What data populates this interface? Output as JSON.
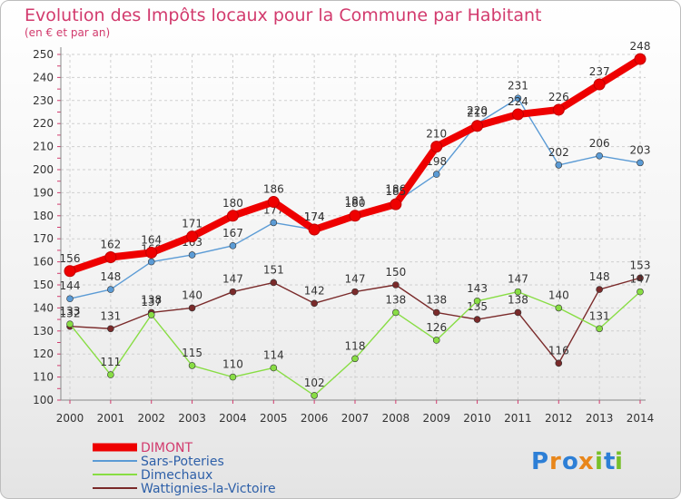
{
  "chart_data": {
    "type": "line",
    "title": "Evolution des Impôts locaux pour la Commune par Habitant",
    "subtitle": "(en € et par an)",
    "xlabel": "",
    "ylabel": "",
    "ylim": [
      100,
      250
    ],
    "yticks": [
      100,
      110,
      120,
      130,
      140,
      150,
      160,
      170,
      180,
      190,
      200,
      210,
      220,
      230,
      240,
      250
    ],
    "x": [
      "2000",
      "2001",
      "2002",
      "2003",
      "2004",
      "2005",
      "2006",
      "2007",
      "2008",
      "2009",
      "2010",
      "2011",
      "2012",
      "2013",
      "2014"
    ],
    "legend_position": "bottom-left",
    "series": [
      {
        "name": "DIMONT",
        "color": "#ee0000",
        "values": [
          156,
          162,
          164,
          171,
          180,
          186,
          174,
          180,
          185,
          210,
          219,
          224,
          226,
          237,
          248
        ]
      },
      {
        "name": "Sars-Poteries",
        "color": "#5b9bd5",
        "values": [
          144,
          148,
          160,
          163,
          167,
          177,
          174,
          181,
          186,
          198,
          220,
          231,
          202,
          206,
          203
        ]
      },
      {
        "name": "Dimechaux",
        "color": "#88dd44",
        "values": [
          133,
          111,
          137,
          115,
          110,
          114,
          102,
          118,
          138,
          126,
          143,
          147,
          140,
          131,
          147
        ]
      },
      {
        "name": "Wattignies-la-Victoire",
        "color": "#7a2a2a",
        "values": [
          132,
          131,
          138,
          140,
          147,
          151,
          142,
          147,
          150,
          138,
          135,
          138,
          116,
          148,
          153
        ]
      }
    ]
  },
  "logo": {
    "letters": [
      "P",
      "r",
      "o",
      "x",
      "i",
      "t",
      "i"
    ],
    "colors": [
      "#2d7fd6",
      "#e8861a",
      "#2d7fd6",
      "#e8861a",
      "#78bf2a",
      "#2d7fd6",
      "#78bf2a"
    ]
  }
}
